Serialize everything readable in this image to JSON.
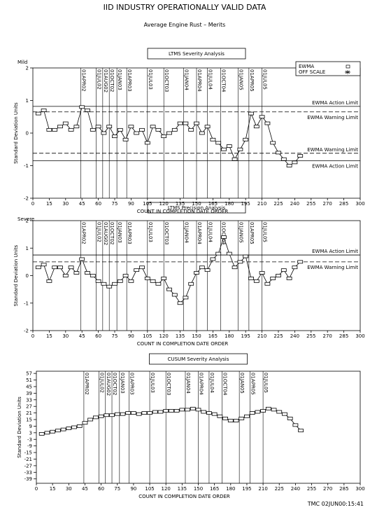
{
  "title": "IID    INDUSTRY OPERATIONALLY VALID DATA",
  "subtitle": "Average Engine Rust – Merits",
  "footer": "TMC  02JUN00:15:41",
  "date_markers": [
    {
      "x": 44,
      "label": "01APR02"
    },
    {
      "x": 58,
      "label": "01JUL02"
    },
    {
      "x": 64,
      "label": "01AUG02"
    },
    {
      "x": 70,
      "label": "01OCT02"
    },
    {
      "x": 77,
      "label": "01JAN03"
    },
    {
      "x": 86,
      "label": "01APR03"
    },
    {
      "x": 105,
      "label": "01JUL03"
    },
    {
      "x": 120,
      "label": "01OCT03"
    },
    {
      "x": 138,
      "label": "01JAN04"
    },
    {
      "x": 150,
      "label": "01APR04"
    },
    {
      "x": 160,
      "label": "01JUL04"
    },
    {
      "x": 172,
      "label": "01OCT04"
    },
    {
      "x": 188,
      "label": "01JAN05"
    },
    {
      "x": 198,
      "label": "01APR05"
    },
    {
      "x": 210,
      "label": "01JUL05"
    }
  ],
  "chart_data": [
    {
      "type": "line",
      "title": "LTMS Severity Analysis",
      "top_label": "Mild",
      "bottom_label": "Severe",
      "ylabel": "Standard Deviation Units",
      "xlabel": "COUNT IN COMPLETION DATE ORDER",
      "xlim": [
        0,
        300
      ],
      "xticks": [
        0,
        15,
        30,
        45,
        60,
        75,
        90,
        105,
        120,
        135,
        150,
        165,
        180,
        195,
        210,
        225,
        240,
        255,
        270,
        285,
        300
      ],
      "ylim": [
        -2,
        2
      ],
      "yticks": [
        -2,
        -1,
        0,
        1,
        2
      ],
      "x": [
        5,
        10,
        15,
        20,
        25,
        30,
        35,
        40,
        45,
        50,
        55,
        60,
        65,
        70,
        75,
        80,
        85,
        90,
        95,
        100,
        105,
        110,
        115,
        120,
        125,
        130,
        135,
        140,
        145,
        150,
        155,
        160,
        165,
        170,
        175,
        180,
        185,
        190,
        195,
        200,
        205,
        210,
        215,
        220,
        225,
        230,
        235,
        240,
        245
      ],
      "series": [
        {
          "name": "EWMA",
          "color": "#000000",
          "values": [
            0.6,
            0.7,
            0.1,
            0.1,
            0.2,
            0.3,
            0.1,
            0.2,
            0.8,
            0.7,
            0.1,
            0.2,
            0.0,
            0.2,
            -0.1,
            0.1,
            -0.2,
            0.2,
            0.0,
            0.1,
            -0.3,
            0.2,
            0.1,
            -0.1,
            0.0,
            0.1,
            0.3,
            0.3,
            0.1,
            0.3,
            0.0,
            0.2,
            -0.2,
            -0.3,
            -0.5,
            -0.4,
            -0.8,
            -0.5,
            -0.2,
            0.6,
            0.2,
            0.5,
            0.3,
            -0.3,
            -0.6,
            -0.8,
            -1.0,
            -0.9,
            -0.7
          ]
        }
      ],
      "limits": [
        {
          "value": 0.82,
          "label": "EWMA Action Limit",
          "style": "solid"
        },
        {
          "value": 0.65,
          "label": "EWMA Warning Limit",
          "style": "dashed"
        },
        {
          "value": -0.62,
          "label": "EWMA Warning Limit",
          "style": "dashed"
        },
        {
          "value": -0.85,
          "label": "EWMA Action Limit",
          "style": "solid"
        }
      ],
      "legend": {
        "corner": "top-right",
        "entries": [
          "EWMA",
          "OFF SCALE"
        ]
      }
    },
    {
      "type": "line",
      "title": "LTMS Precision Analysis",
      "ylabel": "Standard Deviation Units",
      "xlabel": "COUNT IN COMPLETION DATE ORDER",
      "xlim": [
        0,
        300
      ],
      "xticks": [
        0,
        15,
        30,
        45,
        60,
        75,
        90,
        105,
        120,
        135,
        150,
        165,
        180,
        195,
        210,
        225,
        240,
        255,
        270,
        285,
        300
      ],
      "ylim": [
        -2,
        2
      ],
      "yticks": [
        -2,
        -1,
        0,
        1,
        2
      ],
      "x": [
        5,
        10,
        15,
        20,
        25,
        30,
        35,
        40,
        45,
        50,
        55,
        60,
        65,
        70,
        75,
        80,
        85,
        90,
        95,
        100,
        105,
        110,
        115,
        120,
        125,
        130,
        135,
        140,
        145,
        150,
        155,
        160,
        165,
        170,
        175,
        180,
        185,
        190,
        195,
        200,
        205,
        210,
        215,
        220,
        225,
        230,
        235,
        240,
        245
      ],
      "series": [
        {
          "name": "EWMA",
          "color": "#000000",
          "values": [
            0.3,
            0.4,
            -0.2,
            0.3,
            0.3,
            0.0,
            0.3,
            0.1,
            0.6,
            0.1,
            0.0,
            -0.2,
            -0.3,
            -0.4,
            -0.3,
            -0.2,
            0.0,
            -0.2,
            0.2,
            0.3,
            -0.1,
            -0.2,
            -0.3,
            -0.1,
            -0.5,
            -0.7,
            -1.0,
            -0.8,
            -0.3,
            0.1,
            0.3,
            0.2,
            0.6,
            0.8,
            1.4,
            0.8,
            0.3,
            0.5,
            0.7,
            -0.1,
            -0.2,
            0.1,
            -0.3,
            -0.1,
            0.0,
            0.2,
            -0.1,
            0.3,
            0.5
          ]
        }
      ],
      "limits": [
        {
          "value": 0.75,
          "label": "EWMA Action Limit",
          "style": "solid"
        },
        {
          "value": 0.5,
          "label": "EWMA Warning Limit",
          "style": "dashed"
        }
      ]
    },
    {
      "type": "line",
      "title": "CUSUM Severity Analysis",
      "ylabel": "Standard Deviation Units",
      "xlabel": "COUNT IN COMPLETION DATE ORDER",
      "xlim": [
        0,
        300
      ],
      "xticks": [
        0,
        15,
        30,
        45,
        60,
        75,
        90,
        105,
        120,
        135,
        150,
        165,
        180,
        195,
        210,
        225,
        240,
        255,
        270,
        285,
        300
      ],
      "ylim": [
        -43,
        59
      ],
      "yticks": [
        -39,
        -33,
        -27,
        -21,
        -15,
        -9,
        -3,
        3,
        9,
        15,
        21,
        27,
        33,
        39,
        45,
        51,
        57
      ],
      "x": [
        5,
        10,
        15,
        20,
        25,
        30,
        35,
        40,
        45,
        50,
        55,
        60,
        65,
        70,
        75,
        80,
        85,
        90,
        95,
        100,
        105,
        110,
        115,
        120,
        125,
        130,
        135,
        140,
        145,
        150,
        155,
        160,
        165,
        170,
        175,
        180,
        185,
        190,
        195,
        200,
        205,
        210,
        215,
        220,
        225,
        230,
        235,
        240,
        245
      ],
      "series": [
        {
          "name": "CUSUM",
          "color": "#000000",
          "values": [
            2,
            3,
            4,
            5,
            6,
            7,
            8,
            9,
            12,
            15,
            17,
            18,
            19,
            19,
            20,
            20,
            21,
            21,
            20,
            21,
            21,
            22,
            22,
            23,
            23,
            23,
            24,
            24,
            25,
            24,
            22,
            21,
            20,
            18,
            16,
            14,
            14,
            16,
            18,
            21,
            22,
            23,
            25,
            24,
            22,
            20,
            16,
            10,
            5
          ]
        }
      ],
      "limits": []
    }
  ]
}
